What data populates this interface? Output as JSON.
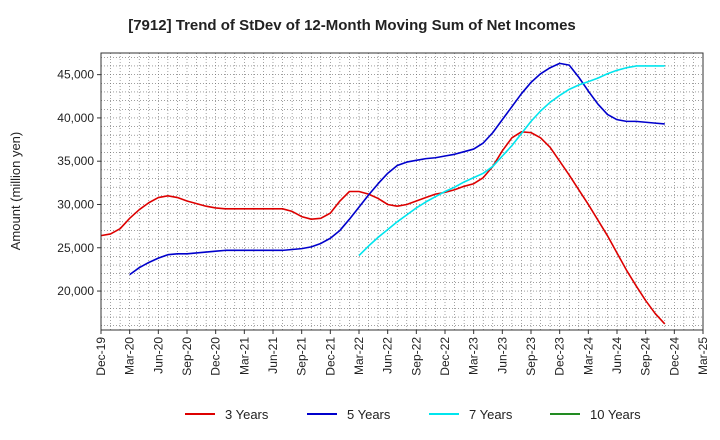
{
  "chart_data": {
    "type": "line",
    "title": "[7912]  Trend of StDev of 12-Month Moving Sum of Net Incomes",
    "ylabel": "Amount (million yen)",
    "xlabel": "",
    "ylim": [
      15500,
      47500
    ],
    "yticks": [
      20000,
      25000,
      30000,
      35000,
      40000,
      45000
    ],
    "ytick_labels": [
      "20,000",
      "25,000",
      "30,000",
      "35,000",
      "40,000",
      "45,000"
    ],
    "x_range": [
      "2019-12",
      "2025-03"
    ],
    "xtick_labels": [
      "Dec-19",
      "Mar-20",
      "Jun-20",
      "Sep-20",
      "Dec-20",
      "Mar-21",
      "Jun-21",
      "Sep-21",
      "Dec-21",
      "Mar-22",
      "Jun-22",
      "Sep-22",
      "Dec-22",
      "Mar-23",
      "Jun-23",
      "Sep-23",
      "Dec-23",
      "Mar-24",
      "Jun-24",
      "Sep-24",
      "Dec-24",
      "Mar-25"
    ],
    "grid": true,
    "legend_position": "bottom",
    "series": [
      {
        "name": "3 Years",
        "color": "#dd0000",
        "start": "2019-12",
        "values": [
          26400,
          26600,
          27200,
          28400,
          29400,
          30200,
          30800,
          31000,
          30800,
          30400,
          30100,
          29800,
          29600,
          29500,
          29500,
          29500,
          29500,
          29500,
          29500,
          29500,
          29200,
          28600,
          28300,
          28400,
          29000,
          30400,
          31500,
          31500,
          31200,
          30700,
          30000,
          29800,
          30000,
          30400,
          30800,
          31200,
          31400,
          31700,
          32100,
          32400,
          33100,
          34400,
          36200,
          37700,
          38400,
          38300,
          37700,
          36600,
          35000,
          33400,
          31700,
          30000,
          28200,
          26400,
          24400,
          22400,
          20600,
          18900,
          17400,
          16200
        ]
      },
      {
        "name": "5 Years",
        "color": "#0000cc",
        "start": "2019-12",
        "values": [
          null,
          null,
          null,
          21900,
          22700,
          23300,
          23800,
          24200,
          24300,
          24300,
          24400,
          24500,
          24600,
          24700,
          24700,
          24700,
          24700,
          24700,
          24700,
          24700,
          24800,
          24900,
          25100,
          25500,
          26100,
          27000,
          28300,
          29700,
          31100,
          32400,
          33600,
          34500,
          34900,
          35100,
          35300,
          35400,
          35600,
          35800,
          36100,
          36400,
          37100,
          38300,
          39800,
          41300,
          42800,
          44100,
          45100,
          45800,
          46300,
          46100,
          44700,
          43100,
          41600,
          40400,
          39800,
          39600,
          39600,
          39500,
          39400,
          39300
        ]
      },
      {
        "name": "7 Years",
        "color": "#00e5ee",
        "start": "2019-12",
        "values": [
          null,
          null,
          null,
          null,
          null,
          null,
          null,
          null,
          null,
          null,
          null,
          null,
          null,
          null,
          null,
          null,
          null,
          null,
          null,
          null,
          null,
          null,
          null,
          null,
          null,
          null,
          null,
          24100,
          25200,
          26200,
          27100,
          28000,
          28800,
          29600,
          30300,
          30900,
          31500,
          32000,
          32600,
          33100,
          33600,
          34400,
          35600,
          36800,
          38200,
          39600,
          40800,
          41800,
          42600,
          43300,
          43800,
          44200,
          44600,
          45100,
          45500,
          45800,
          46000,
          46000,
          46000,
          46000
        ]
      },
      {
        "name": "10 Years",
        "color": "#228b22",
        "start": "2019-12",
        "values": []
      }
    ]
  }
}
